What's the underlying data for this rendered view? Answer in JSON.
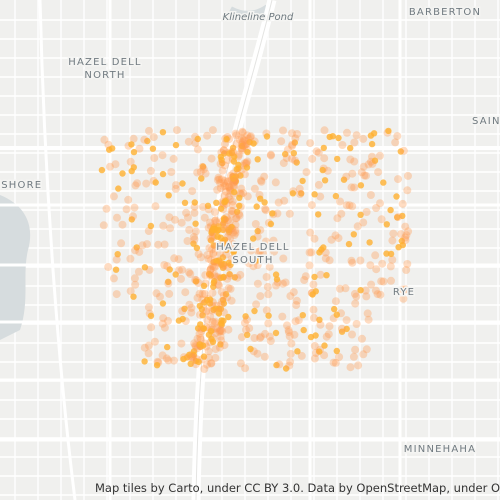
{
  "map": {
    "places": [
      {
        "lines": [
          "Klineline Pond"
        ],
        "style": "water"
      },
      {
        "lines": [
          "BARBERTON"
        ],
        "style": "area"
      },
      {
        "lines": [
          "HAZEL DELL",
          "NORTH"
        ],
        "style": "area"
      },
      {
        "lines": [
          "SAINT"
        ],
        "style": "area"
      },
      {
        "lines": [
          "ESHORE"
        ],
        "style": "area"
      },
      {
        "lines": [
          "HAZEL DELL",
          "SOUTH"
        ],
        "style": "area"
      },
      {
        "lines": [
          "RYE"
        ],
        "style": "area"
      },
      {
        "lines": [
          "MINNEHAHA"
        ],
        "style": "area"
      }
    ],
    "attribution": "Map tiles by Carto, under CC BY 3.0. Data by OpenStreetMap, under ODbL."
  }
}
